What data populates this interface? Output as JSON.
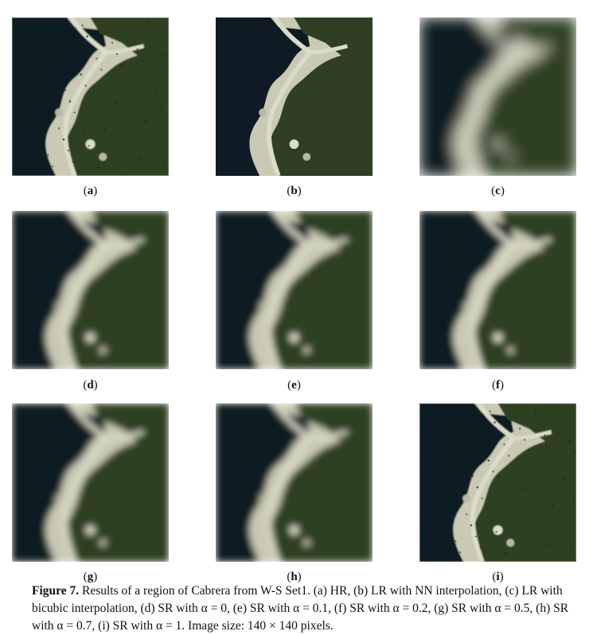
{
  "panels": [
    {
      "letter": "a",
      "sharpness": "hr"
    },
    {
      "letter": "b",
      "sharpness": "nn"
    },
    {
      "letter": "c",
      "sharpness": "bicubic"
    },
    {
      "letter": "d",
      "sharpness": "sr"
    },
    {
      "letter": "e",
      "sharpness": "sr"
    },
    {
      "letter": "f",
      "sharpness": "sr"
    },
    {
      "letter": "g",
      "sharpness": "sr"
    },
    {
      "letter": "h",
      "sharpness": "sr"
    },
    {
      "letter": "i",
      "sharpness": "hr"
    }
  ],
  "caption": {
    "figure_label": "Figure 7.",
    "text": "Results of a region of Cabrera from W-S Set1. (a) HR, (b) LR with NN interpolation, (c) LR with bicubic interpolation, (d) SR with α = 0, (e) SR with α = 0.1, (f) SR with α = 0.2, (g) SR with α = 0.5, (h) SR with α = 0.7, (i) SR with α = 1. Image size: 140 × 140 pixels."
  },
  "colors": {
    "sea": "#0e1b24",
    "vegetation": "#2f3f24",
    "coast": "#d9dcc8"
  }
}
